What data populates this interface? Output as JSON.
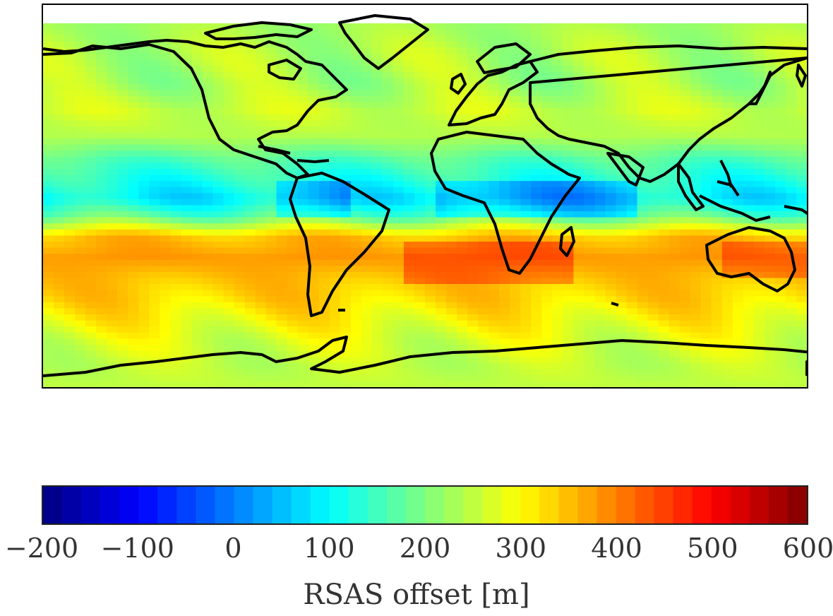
{
  "colorbar": {
    "label": "RSAS offset [m]",
    "min": -200,
    "max": 600,
    "step": 20,
    "ticks": [
      {
        "value": -200,
        "label": "−200"
      },
      {
        "value": -100,
        "label": "−100"
      },
      {
        "value": 0,
        "label": "0"
      },
      {
        "value": 100,
        "label": "100"
      },
      {
        "value": 200,
        "label": "200"
      },
      {
        "value": 300,
        "label": "300"
      },
      {
        "value": 400,
        "label": "400"
      },
      {
        "value": 500,
        "label": "500"
      },
      {
        "value": 600,
        "label": "600"
      }
    ],
    "colormap": "jet"
  },
  "map": {
    "projection": "equirectangular",
    "lon_range": [
      -180,
      180
    ],
    "lat_range": [
      -90,
      90
    ],
    "field_description_bands": [
      {
        "lat": 82,
        "value": 230
      },
      {
        "lat": 70,
        "value": 240
      },
      {
        "lat": 55,
        "value": 230
      },
      {
        "lat": 42,
        "value": 260
      },
      {
        "lat": 30,
        "value": 240
      },
      {
        "lat": 18,
        "value": 160
      },
      {
        "lat": 8,
        "value": 120
      },
      {
        "lat": 0,
        "value": 90
      },
      {
        "lat": -8,
        "value": 170
      },
      {
        "lat": -18,
        "value": 350
      },
      {
        "lat": -28,
        "value": 380
      },
      {
        "lat": -38,
        "value": 350
      },
      {
        "lat": -48,
        "value": 330
      },
      {
        "lat": -58,
        "value": 300
      },
      {
        "lat": -68,
        "value": 270
      },
      {
        "lat": -80,
        "value": 250
      }
    ]
  }
}
